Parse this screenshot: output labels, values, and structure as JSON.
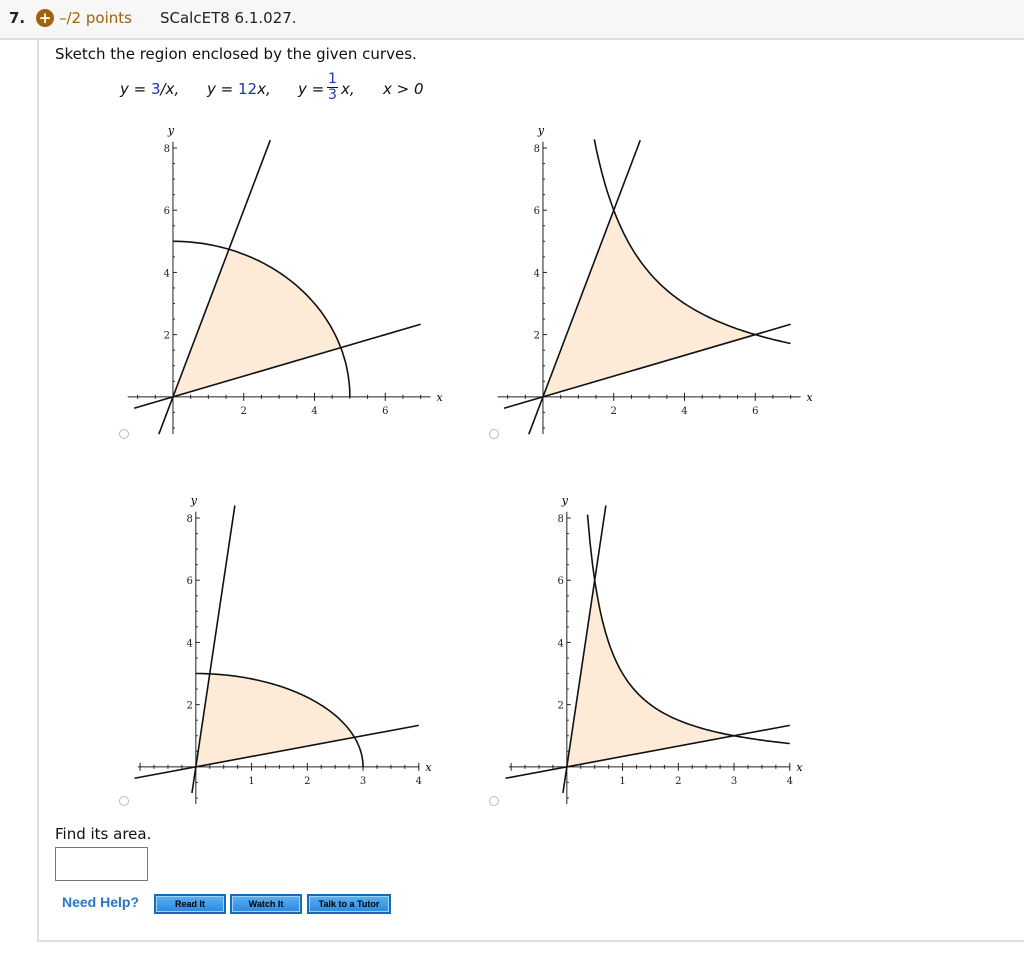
{
  "header": {
    "number": "7.",
    "points": "–/2 points",
    "reference": "SCalcET8 6.1.027."
  },
  "question": {
    "prompt": "Sketch the region enclosed by the given curves.",
    "eq1_pre": "y = ",
    "eq1_val": "3",
    "eq1_post": "/x,",
    "eq2_pre": "y = ",
    "eq2_val": "12",
    "eq2_post": "x,",
    "eq3_pre": "y = ",
    "eq3_num": "1",
    "eq3_den": "3",
    "eq3_post": "x,",
    "eq4": "x > 0"
  },
  "colors": {
    "fill": "#fdebd8",
    "curve": "#111111",
    "link": "#2277cc",
    "points": "#a0620a"
  },
  "chart_data": [
    {
      "type": "line",
      "xlabel": "x",
      "ylabel": "y",
      "xticks": [
        "2",
        "4",
        "6"
      ],
      "yticks": [
        "2",
        "4",
        "6",
        "8"
      ],
      "xlim": [
        -1.78,
        7.83
      ],
      "ylim": [
        -2.03,
        8.9
      ],
      "curves": [
        "circle r=5",
        "y=3x",
        "y=x/3"
      ]
    },
    {
      "type": "line",
      "xlabel": "x",
      "ylabel": "y",
      "xticks": [
        "2",
        "4",
        "6"
      ],
      "yticks": [
        "2",
        "4",
        "6",
        "8"
      ],
      "xlim": [
        -1.78,
        7.83
      ],
      "ylim": [
        -2.03,
        8.9
      ],
      "curves": [
        "y=12/x",
        "y=3x",
        "y=x/3"
      ]
    },
    {
      "type": "line",
      "xlabel": "x",
      "ylabel": "y",
      "xticks": [
        "1",
        "2",
        "3",
        "4"
      ],
      "yticks": [
        "2",
        "4",
        "6",
        "8"
      ],
      "xlim": [
        -1.54,
        4.56
      ],
      "ylim": [
        -2.03,
        8.9
      ],
      "curves": [
        "circle r=3",
        "y=12x",
        "y=x/3"
      ]
    },
    {
      "type": "line",
      "xlabel": "x",
      "ylabel": "y",
      "xticks": [
        "1",
        "2",
        "3",
        "4"
      ],
      "yticks": [
        "2",
        "4",
        "6",
        "8"
      ],
      "xlim": [
        -1.54,
        4.56
      ],
      "ylim": [
        -2.03,
        8.9
      ],
      "curves": [
        "y=3/x",
        "y=12x",
        "y=x/3"
      ]
    }
  ],
  "answer": {
    "label": "Find its area.",
    "value": ""
  },
  "help": {
    "label": "Need Help?",
    "read": "Read It",
    "watch": "Watch It",
    "tutor": "Talk to a Tutor"
  }
}
